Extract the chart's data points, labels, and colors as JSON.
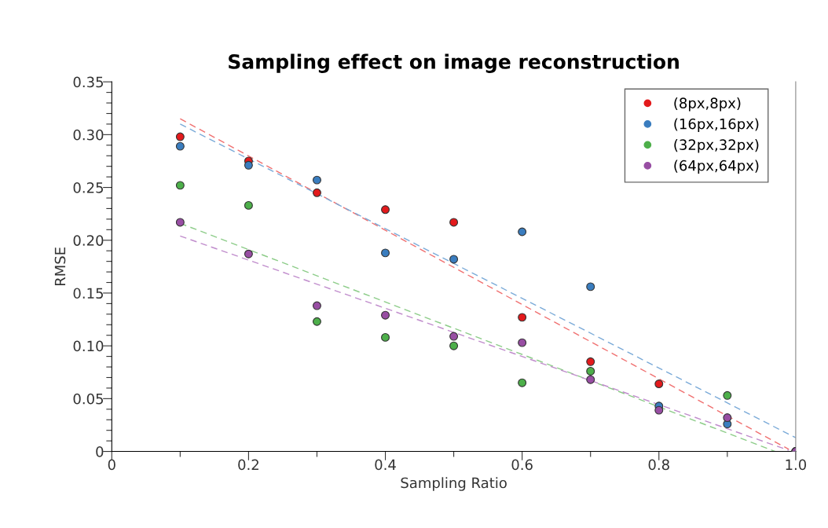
{
  "chart_data": {
    "type": "scatter",
    "title": "Sampling effect on image reconstruction",
    "xlabel": "Sampling Ratio",
    "ylabel": "RMSE",
    "x": [
      0.1,
      0.2,
      0.3,
      0.4,
      0.5,
      0.6,
      0.7,
      0.8,
      0.9,
      1.0
    ],
    "series": [
      {
        "name": "(8px,8px)",
        "color": "#e31a1c",
        "values": [
          0.298,
          0.275,
          0.245,
          0.229,
          0.217,
          0.127,
          0.085,
          0.064,
          null,
          0
        ]
      },
      {
        "name": "(16px,16px)",
        "color": "#3a7dbf",
        "values": [
          0.289,
          0.271,
          0.257,
          0.188,
          0.182,
          0.208,
          0.156,
          0.043,
          0.026,
          0
        ]
      },
      {
        "name": "(32px,32px)",
        "color": "#4daf4a",
        "values": [
          0.252,
          0.233,
          0.123,
          0.108,
          0.1,
          0.065,
          0.076,
          null,
          0.053,
          0
        ]
      },
      {
        "name": "(64px,64px)",
        "color": "#984ea3",
        "values": [
          0.217,
          0.187,
          0.138,
          0.129,
          0.109,
          0.103,
          0.068,
          0.039,
          0.032,
          0
        ]
      },
      {
        "type": "line",
        "color": "#f07070",
        "line_style": "dashed",
        "marker": "none",
        "x": [
          0.1,
          0.99
        ],
        "values": [
          0.315,
          0.002
        ]
      },
      {
        "type": "line",
        "color": "#7aaad8",
        "line_style": "dashed",
        "marker": "none",
        "x": [
          0.1,
          1.0
        ],
        "values": [
          0.31,
          0.013
        ]
      },
      {
        "type": "line",
        "color": "#8ccc88",
        "line_style": "dashed",
        "marker": "none",
        "x": [
          0.1,
          0.97
        ],
        "values": [
          0.216,
          0.0
        ]
      },
      {
        "type": "line",
        "color": "#c08ccc",
        "line_style": "dashed",
        "marker": "none",
        "x": [
          0.1,
          0.99
        ],
        "values": [
          0.204,
          0.001
        ]
      }
    ],
    "marker": "circle",
    "legend": "top right",
    "grid": false,
    "xlim": [
      0,
      1.0
    ],
    "ylim": [
      0,
      0.35
    ],
    "xticks": [
      0,
      {
        "value": 0.1,
        "label": null
      },
      0.2,
      {
        "value": 0.3,
        "label": null
      },
      0.4,
      {
        "value": 0.5,
        "label": null
      },
      0.6,
      {
        "value": 0.7,
        "label": null
      },
      0.8,
      {
        "value": 0.9,
        "label": null
      },
      {
        "value": 1.0,
        "label": "1.0"
      }
    ],
    "yticks": [
      0,
      {
        "value": 0.01,
        "label": null
      },
      {
        "value": 0.02,
        "label": null
      },
      {
        "value": 0.03,
        "label": null
      },
      {
        "value": 0.04,
        "label": null
      },
      0.05,
      {
        "value": 0.06,
        "label": null
      },
      {
        "value": 0.07,
        "label": null
      },
      {
        "value": 0.08,
        "label": null
      },
      {
        "value": 0.09,
        "label": null
      },
      {
        "value": 0.1,
        "label": "0.10"
      },
      {
        "value": 0.11,
        "label": null
      },
      {
        "value": 0.12,
        "label": null
      },
      {
        "value": 0.13,
        "label": null
      },
      {
        "value": 0.14,
        "label": null
      },
      0.15,
      {
        "value": 0.16,
        "label": null
      },
      {
        "value": 0.17,
        "label": null
      },
      {
        "value": 0.18,
        "label": null
      },
      {
        "value": 0.19,
        "label": null
      },
      {
        "value": 0.2,
        "label": "0.20"
      },
      {
        "value": 0.21,
        "label": null
      },
      {
        "value": 0.22,
        "label": null
      },
      {
        "value": 0.23,
        "label": null
      },
      {
        "value": 0.24,
        "label": null
      },
      0.25,
      {
        "value": 0.26,
        "label": null
      },
      {
        "value": 0.27,
        "label": null
      },
      {
        "value": 0.28,
        "label": null
      },
      {
        "value": 0.29,
        "label": null
      },
      {
        "value": 0.3,
        "label": "0.30"
      },
      {
        "value": 0.31,
        "label": null
      },
      {
        "value": 0.32,
        "label": null
      },
      {
        "value": 0.33,
        "label": null
      },
      {
        "value": 0.34,
        "label": null
      },
      0.35
    ]
  }
}
